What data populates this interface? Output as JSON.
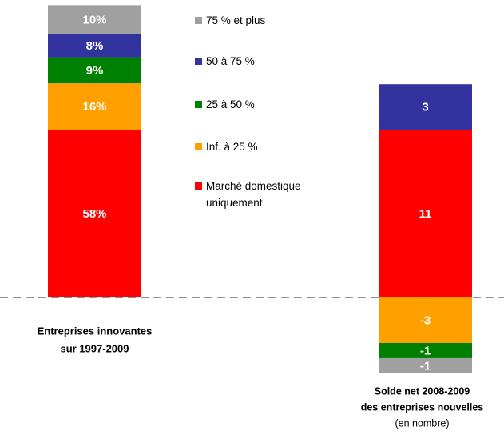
{
  "chart_data": [
    {
      "type": "stacked_bar",
      "label": [
        "Entreprises innovantes",
        "sur 1997-2009"
      ],
      "ylim": [
        0,
        100
      ],
      "series": [
        {
          "name": "75 % et plus",
          "color": "#a0a0a0",
          "values": [
            10
          ],
          "value_labels": [
            "10%"
          ]
        },
        {
          "name": "50 à 75 %",
          "color": "#3333a0",
          "values": [
            8
          ],
          "value_labels": [
            "8%"
          ]
        },
        {
          "name": "25 à 50 %",
          "color": "#008000",
          "values": [
            9
          ],
          "value_labels": [
            "9%"
          ]
        },
        {
          "name": "Inf. à 25 %",
          "color": "#ffa000",
          "values": [
            16
          ],
          "value_labels": [
            "16%"
          ]
        },
        {
          "name": "Marché domestique uniquement",
          "color": "#ff0000",
          "values": [
            58
          ],
          "value_labels": [
            "58%"
          ]
        }
      ]
    },
    {
      "type": "stacked_bar",
      "label": [
        "Solde net 2008-2009",
        "des entreprises nouvelles"
      ],
      "note": "(en nombre)",
      "ylim": [
        -5,
        19
      ],
      "series": [
        {
          "color": "#a0a0a0",
          "values": [
            -1
          ]
        },
        {
          "color": "#3333a0",
          "values": [
            3
          ]
        },
        {
          "color": "#008000",
          "values": [
            -1
          ]
        },
        {
          "color": "#ffa000",
          "values": [
            -3
          ]
        },
        {
          "color": "#ff0000",
          "values": [
            11
          ]
        }
      ]
    }
  ]
}
